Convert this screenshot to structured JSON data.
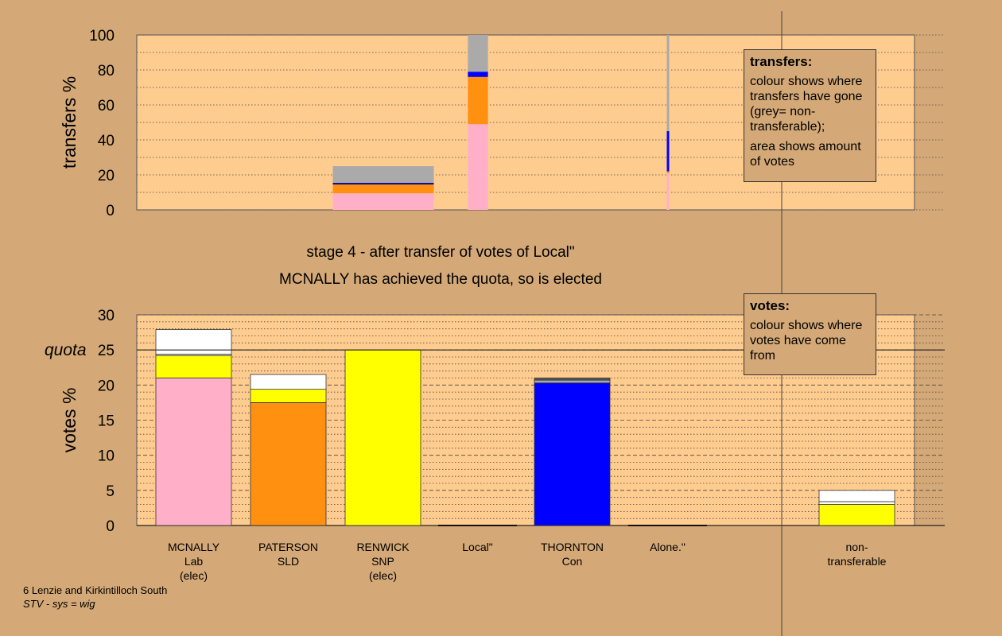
{
  "chart_data": [
    {
      "type": "bar",
      "stacked": true,
      "ylabel": "transfers %",
      "ylim": [
        0,
        100
      ],
      "yticks": [
        0,
        20,
        40,
        60,
        80,
        100
      ],
      "series": [
        {
          "name": "MCNALLY Lab",
          "color": "#ffb0c8",
          "values": [
            0,
            0,
            9.5,
            49,
            0,
            21
          ]
        },
        {
          "name": "PATERSON SLD",
          "color": "#ff9010",
          "values": [
            0,
            0,
            5,
            27,
            0,
            1
          ]
        },
        {
          "name": "RENWICK SNP",
          "color": "#ffff00",
          "values": [
            0,
            0,
            0,
            0,
            0,
            0
          ]
        },
        {
          "name": "THORNTON Con",
          "color": "#0000ff",
          "values": [
            0,
            0,
            1,
            3,
            0,
            23
          ]
        },
        {
          "name": "non-transferable",
          "color": "#aaaaaa",
          "values": [
            0,
            0,
            9.5,
            21,
            0,
            55
          ]
        }
      ],
      "bar_widths": [
        0,
        0,
        1,
        0.2,
        0,
        0.02
      ]
    },
    {
      "type": "bar",
      "stacked": true,
      "ylabel": "votes %",
      "ylim": [
        0,
        30
      ],
      "yticks": [
        0,
        5,
        10,
        15,
        20,
        25,
        30
      ],
      "quota": 25,
      "quota_label": "quota",
      "categories": [
        {
          "name": "MCNALLY",
          "party": "Lab",
          "status": "(elec)"
        },
        {
          "name": "PATERSON",
          "party": "SLD",
          "status": ""
        },
        {
          "name": "RENWICK",
          "party": "SNP",
          "status": "(elec)"
        },
        {
          "name": "Local\"",
          "party": "",
          "status": ""
        },
        {
          "name": "THORNTON",
          "party": "Con",
          "status": ""
        },
        {
          "name": "Alone.\"",
          "party": "",
          "status": ""
        },
        {
          "name": "non-",
          "party": "transferable",
          "status": ""
        }
      ],
      "stacks": [
        [
          {
            "color": "#ffb0c8",
            "value": 21
          },
          {
            "color": "#ffff00",
            "value": 3.2
          },
          {
            "color": "#ffffff",
            "value": 0.2
          },
          {
            "color": "#ffffff",
            "value": 3.5
          }
        ],
        [
          {
            "color": "#ff9010",
            "value": 17.5
          },
          {
            "color": "#ffff00",
            "value": 1.9
          },
          {
            "color": "#ffffff",
            "value": 2.1
          }
        ],
        [
          {
            "color": "#ffff00",
            "value": 25
          }
        ],
        [],
        [
          {
            "color": "#0000ff",
            "value": 20.3
          },
          {
            "color": "#aaaaaa",
            "value": 0.4
          },
          {
            "color": "#555555",
            "value": 0.3
          }
        ],
        [],
        [
          {
            "color": "#ffff00",
            "value": 3
          },
          {
            "color": "#ffffff",
            "value": 0.4
          },
          {
            "color": "#ffffff",
            "value": 1.6
          }
        ]
      ]
    }
  ],
  "stage_title": "stage 4 - after transfer of votes of Local\"",
  "stage_subtitle": "MCNALLY has achieved the quota, so is elected",
  "legend_transfers": {
    "title": "transfers:",
    "line1": "colour shows where transfers have gone (grey= non-transferable);",
    "line2": "area shows amount of votes"
  },
  "legend_votes": {
    "title": "votes:",
    "line1": "colour shows where votes have come from"
  },
  "footer": {
    "ward": "6 Lenzie and Kirkintilloch South",
    "system": "STV - sys = wig"
  }
}
